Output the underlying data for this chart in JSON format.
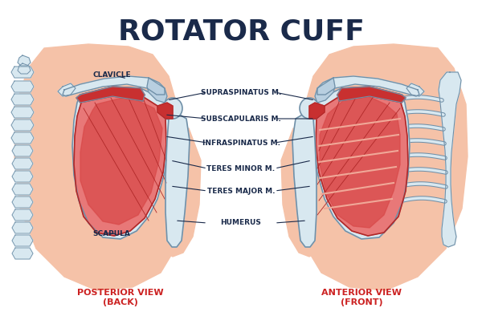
{
  "title": "ROTATOR CUFF",
  "title_color": "#1a2a4a",
  "title_fontsize": 26,
  "title_weight": "bold",
  "bg_color": "#ffffff",
  "skin_color": "#f5c2a8",
  "skin_dark": "#e8a888",
  "bone_color": "#d8e8f0",
  "bone_mid": "#b8cfe0",
  "bone_outline": "#7090a8",
  "muscle_red": "#c83030",
  "muscle_mid": "#d84848",
  "muscle_light": "#e87878",
  "muscle_pink": "#f0a898",
  "muscle_stripe": "#b02828",
  "label_color": "#1a2a4a",
  "label_fontsize": 6.5,
  "view_label_color": "#cc2222",
  "view_label_fontsize": 8,
  "posterior_label": "POSTERIOR VIEW\n(BACK)",
  "anterior_label": "ANTERIOR VIEW\n(FRONT)",
  "center_labels": [
    [
      "SUPRASPINATUS M.",
      300,
      115
    ],
    [
      "SUBSCAPULARIS M.",
      300,
      148
    ],
    [
      "INFRASPINATUS M.",
      300,
      178
    ],
    [
      "TERES MINOR M.",
      300,
      210
    ],
    [
      "TERES MAJOR M.",
      300,
      238
    ],
    [
      "HUMERUS",
      300,
      278
    ]
  ]
}
